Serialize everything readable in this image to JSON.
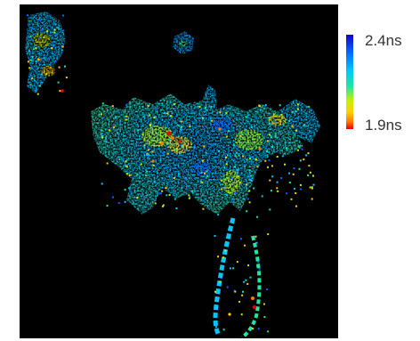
{
  "image": {
    "description_kind": "fluorescence-lifetime-map",
    "colormap": [
      "#1a00c8",
      "#0066ff",
      "#00c8ff",
      "#22e6a0",
      "#c8f000",
      "#ffd000",
      "#ff7a00",
      "#e60000"
    ]
  },
  "colorbar": {
    "max_label": "2.4ns",
    "min_label": "1.9ns",
    "max_color": "#1a00c8",
    "min_color": "#e60000"
  }
}
